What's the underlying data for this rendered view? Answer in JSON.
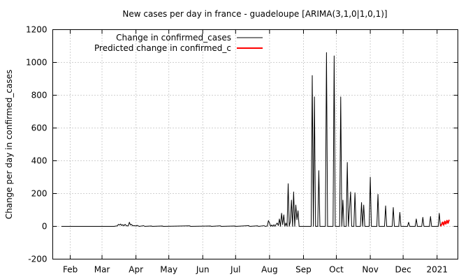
{
  "chart_data": {
    "type": "line",
    "title": "New cases per day in france - guadeloupe [ARIMA(3,1,0|1,0,1)]",
    "xlabel": "",
    "ylabel": "Change per day in confirmed_cases",
    "ylim": [
      -200,
      1200
    ],
    "yticks": [
      -200,
      0,
      200,
      400,
      600,
      800,
      1000,
      1200
    ],
    "xlim": [
      "2020-01-16",
      "2021-01-20"
    ],
    "xticks": [
      {
        "date": "2020-02-01",
        "label": "Feb"
      },
      {
        "date": "2020-03-01",
        "label": "Mar"
      },
      {
        "date": "2020-04-01",
        "label": "Apr"
      },
      {
        "date": "2020-05-01",
        "label": "May"
      },
      {
        "date": "2020-06-01",
        "label": "Jun"
      },
      {
        "date": "2020-07-01",
        "label": "Jul"
      },
      {
        "date": "2020-08-01",
        "label": "Aug"
      },
      {
        "date": "2020-09-01",
        "label": "Sep"
      },
      {
        "date": "2020-10-01",
        "label": "Oct"
      },
      {
        "date": "2020-11-01",
        "label": "Nov"
      },
      {
        "date": "2020-12-01",
        "label": "Dec"
      },
      {
        "date": "2021-01-01",
        "label": "2021"
      }
    ],
    "grid": true,
    "legend_position": "top-left",
    "series": [
      {
        "name": "Change in confirmed_cases",
        "color": "#000000",
        "points": [
          [
            "2020-01-24",
            0
          ],
          [
            "2020-03-12",
            0
          ],
          [
            "2020-03-15",
            3
          ],
          [
            "2020-03-16",
            12
          ],
          [
            "2020-03-17",
            8
          ],
          [
            "2020-03-18",
            14
          ],
          [
            "2020-03-19",
            5
          ],
          [
            "2020-03-20",
            10
          ],
          [
            "2020-03-21",
            3
          ],
          [
            "2020-03-22",
            12
          ],
          [
            "2020-03-23",
            6
          ],
          [
            "2020-03-24",
            2
          ],
          [
            "2020-03-25",
            4
          ],
          [
            "2020-03-26",
            25
          ],
          [
            "2020-03-27",
            8
          ],
          [
            "2020-03-28",
            12
          ],
          [
            "2020-03-29",
            3
          ],
          [
            "2020-03-30",
            5
          ],
          [
            "2020-04-01",
            2
          ],
          [
            "2020-04-02",
            6
          ],
          [
            "2020-04-03",
            3
          ],
          [
            "2020-04-04",
            0
          ],
          [
            "2020-04-08",
            4
          ],
          [
            "2020-04-09",
            0
          ],
          [
            "2020-04-15",
            2
          ],
          [
            "2020-04-16",
            0
          ],
          [
            "2020-04-25",
            2
          ],
          [
            "2020-04-26",
            0
          ],
          [
            "2020-05-20",
            3
          ],
          [
            "2020-05-21",
            0
          ],
          [
            "2020-06-08",
            2
          ],
          [
            "2020-06-09",
            0
          ],
          [
            "2020-06-17",
            3
          ],
          [
            "2020-06-18",
            0
          ],
          [
            "2020-06-30",
            2
          ],
          [
            "2020-07-01",
            0
          ],
          [
            "2020-07-13",
            4
          ],
          [
            "2020-07-14",
            0
          ],
          [
            "2020-07-21",
            3
          ],
          [
            "2020-07-22",
            0
          ],
          [
            "2020-07-27",
            4
          ],
          [
            "2020-07-28",
            0
          ],
          [
            "2020-07-30",
            2
          ],
          [
            "2020-07-31",
            35
          ],
          [
            "2020-08-01",
            20
          ],
          [
            "2020-08-02",
            0
          ],
          [
            "2020-08-03",
            8
          ],
          [
            "2020-08-04",
            0
          ],
          [
            "2020-08-05",
            10
          ],
          [
            "2020-08-06",
            0
          ],
          [
            "2020-08-07",
            12
          ],
          [
            "2020-08-08",
            20
          ],
          [
            "2020-08-09",
            5
          ],
          [
            "2020-08-10",
            45
          ],
          [
            "2020-08-11",
            0
          ],
          [
            "2020-08-12",
            80
          ],
          [
            "2020-08-13",
            10
          ],
          [
            "2020-08-14",
            70
          ],
          [
            "2020-08-15",
            0
          ],
          [
            "2020-08-16",
            20
          ],
          [
            "2020-08-17",
            0
          ],
          [
            "2020-08-18",
            260
          ],
          [
            "2020-08-19",
            0
          ],
          [
            "2020-08-20",
            30
          ],
          [
            "2020-08-21",
            160
          ],
          [
            "2020-08-22",
            0
          ],
          [
            "2020-08-23",
            210
          ],
          [
            "2020-08-24",
            0
          ],
          [
            "2020-08-25",
            130
          ],
          [
            "2020-08-26",
            40
          ],
          [
            "2020-08-27",
            95
          ],
          [
            "2020-08-28",
            0
          ],
          [
            "2020-09-08",
            0
          ],
          [
            "2020-09-09",
            920
          ],
          [
            "2020-09-10",
            0
          ],
          [
            "2020-09-11",
            790
          ],
          [
            "2020-09-12",
            0
          ],
          [
            "2020-09-14",
            0
          ],
          [
            "2020-09-15",
            340
          ],
          [
            "2020-09-16",
            0
          ],
          [
            "2020-09-21",
            0
          ],
          [
            "2020-09-22",
            1060
          ],
          [
            "2020-09-23",
            0
          ],
          [
            "2020-09-28",
            0
          ],
          [
            "2020-09-29",
            1040
          ],
          [
            "2020-09-30",
            0
          ],
          [
            "2020-10-04",
            0
          ],
          [
            "2020-10-05",
            790
          ],
          [
            "2020-10-06",
            0
          ],
          [
            "2020-10-07",
            160
          ],
          [
            "2020-10-08",
            0
          ],
          [
            "2020-10-10",
            0
          ],
          [
            "2020-10-11",
            390
          ],
          [
            "2020-10-12",
            0
          ],
          [
            "2020-10-14",
            210
          ],
          [
            "2020-10-15",
            0
          ],
          [
            "2020-10-17",
            0
          ],
          [
            "2020-10-18",
            205
          ],
          [
            "2020-10-19",
            0
          ],
          [
            "2020-10-23",
            0
          ],
          [
            "2020-10-24",
            145
          ],
          [
            "2020-10-25",
            0
          ],
          [
            "2020-10-26",
            130
          ],
          [
            "2020-10-27",
            0
          ],
          [
            "2020-10-31",
            0
          ],
          [
            "2020-11-01",
            300
          ],
          [
            "2020-11-02",
            0
          ],
          [
            "2020-11-07",
            0
          ],
          [
            "2020-11-08",
            195
          ],
          [
            "2020-11-09",
            0
          ],
          [
            "2020-11-14",
            0
          ],
          [
            "2020-11-15",
            125
          ],
          [
            "2020-11-16",
            0
          ],
          [
            "2020-11-21",
            0
          ],
          [
            "2020-11-22",
            115
          ],
          [
            "2020-11-23",
            0
          ],
          [
            "2020-11-27",
            0
          ],
          [
            "2020-11-28",
            85
          ],
          [
            "2020-11-29",
            0
          ],
          [
            "2020-12-05",
            0
          ],
          [
            "2020-12-06",
            25
          ],
          [
            "2020-12-07",
            0
          ],
          [
            "2020-12-12",
            0
          ],
          [
            "2020-12-13",
            45
          ],
          [
            "2020-12-14",
            0
          ],
          [
            "2020-12-18",
            0
          ],
          [
            "2020-12-19",
            55
          ],
          [
            "2020-12-20",
            0
          ],
          [
            "2020-12-25",
            0
          ],
          [
            "2020-12-26",
            60
          ],
          [
            "2020-12-27",
            0
          ],
          [
            "2021-01-02",
            0
          ],
          [
            "2021-01-03",
            80
          ],
          [
            "2021-01-04",
            0
          ]
        ]
      },
      {
        "name": "Predicted change in confirmed_c",
        "color": "#ff0000",
        "points": [
          [
            "2021-01-04",
            0
          ],
          [
            "2021-01-05",
            10
          ],
          [
            "2021-01-06",
            25
          ],
          [
            "2021-01-07",
            8
          ],
          [
            "2021-01-08",
            30
          ],
          [
            "2021-01-09",
            15
          ],
          [
            "2021-01-10",
            35
          ],
          [
            "2021-01-11",
            20
          ],
          [
            "2021-01-12",
            40
          ]
        ]
      }
    ]
  }
}
